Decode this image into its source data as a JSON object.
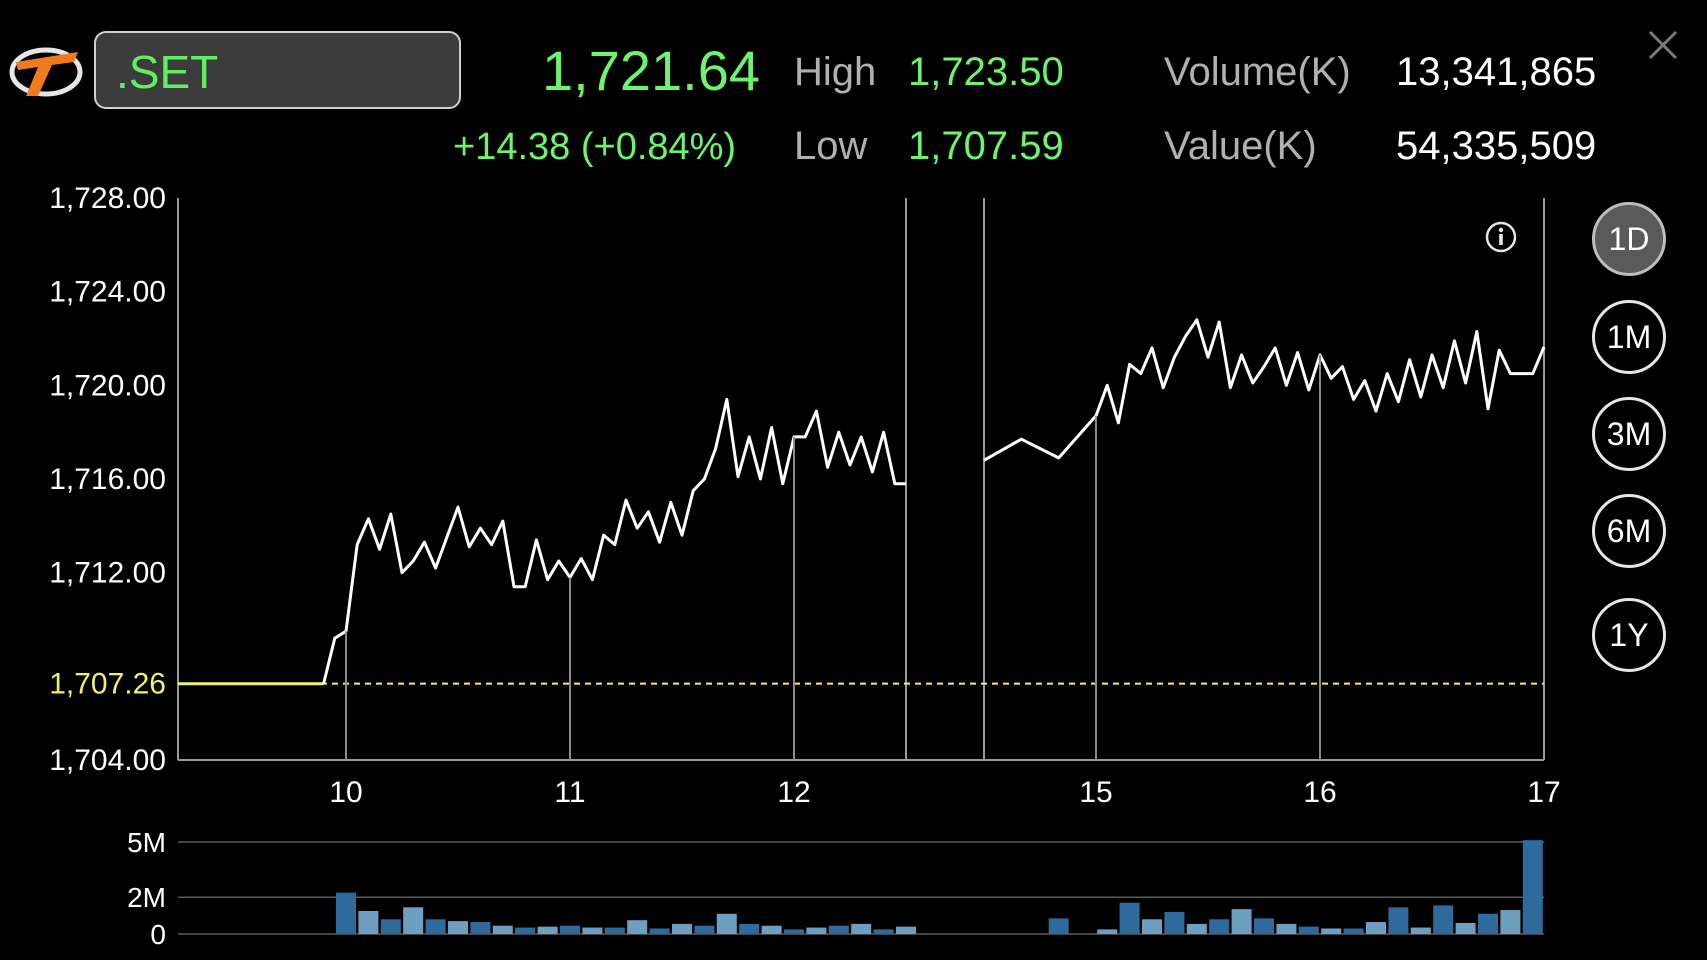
{
  "header": {
    "symbol": ".SET",
    "last": "1,721.64",
    "change": "+14.38  (+0.84%)",
    "high_label": "High",
    "high_value": "1,723.50",
    "low_label": "Low",
    "low_value": "1,707.59",
    "volume_label": "Volume(K)",
    "volume_value": "13,341,865",
    "value_label": "Value(K)",
    "value_value": "54,335,509"
  },
  "ranges": [
    {
      "label": "1D",
      "active": true
    },
    {
      "label": "1M",
      "active": false
    },
    {
      "label": "3M",
      "active": false
    },
    {
      "label": "6M",
      "active": false
    },
    {
      "label": "1Y",
      "active": false
    }
  ],
  "icons": {
    "logo": "app-logo",
    "close": "close-icon",
    "info": "info-icon"
  },
  "colors": {
    "up": "#6cf46c",
    "reference": "#f3f06a",
    "line": "#ffffff",
    "volume_dark": "#2e6b9c",
    "volume_light": "#6f9fc0"
  },
  "chart_data": [
    {
      "type": "line",
      "title": "",
      "xlabel": "",
      "ylabel": "",
      "ylim": [
        1704.0,
        1728.0
      ],
      "y_ticks": [
        "1,728.00",
        "1,724.00",
        "1,720.00",
        "1,716.00",
        "1,712.00",
        "1,704.00"
      ],
      "y_tick_values": [
        1728,
        1724,
        1720,
        1716,
        1712,
        1704
      ],
      "reference": {
        "label": "1,707.26",
        "value": 1707.26
      },
      "x_ticks": [
        "10",
        "11",
        "12",
        "15",
        "16",
        "17"
      ],
      "x_tick_values": [
        10,
        11,
        12,
        15,
        16,
        17
      ],
      "session_gap": [
        12.5,
        14.85
      ],
      "grid": true,
      "series": [
        {
          "x": [
            9.25,
            9.9
          ],
          "y": [
            1707.26,
            1707.26
          ]
        },
        {
          "x": [
            9.9,
            9.95,
            10.0,
            10.05,
            10.1,
            10.15,
            10.2,
            10.25,
            10.3,
            10.35,
            10.4,
            10.45,
            10.5,
            10.55,
            10.6,
            10.65,
            10.7,
            10.75,
            10.8,
            10.85,
            10.9,
            10.95,
            11.0,
            11.05,
            11.1,
            11.15,
            11.2,
            11.25,
            11.3,
            11.35,
            11.4,
            11.45,
            11.5,
            11.55,
            11.6,
            11.65,
            11.7,
            11.75,
            11.8,
            11.85,
            11.9,
            11.95,
            12.0,
            12.05,
            12.1,
            12.15,
            12.2,
            12.25,
            12.3,
            12.35,
            12.4,
            12.45,
            12.5
          ],
          "y": [
            1707.26,
            1709.2,
            1709.5,
            1713.2,
            1714.3,
            1713.0,
            1714.5,
            1712.0,
            1712.5,
            1713.3,
            1712.2,
            1713.5,
            1714.8,
            1713.1,
            1713.9,
            1713.2,
            1714.2,
            1711.4,
            1711.4,
            1713.4,
            1711.7,
            1712.5,
            1711.8,
            1712.6,
            1711.7,
            1713.6,
            1713.2,
            1715.1,
            1713.9,
            1714.6,
            1713.3,
            1715.0,
            1713.6,
            1715.5,
            1716.0,
            1717.3,
            1719.4,
            1716.1,
            1717.8,
            1716.0,
            1718.2,
            1715.8,
            1717.8,
            1717.8,
            1718.9,
            1716.5,
            1718.0,
            1716.6,
            1717.8,
            1716.3,
            1718.0,
            1715.8,
            1715.8
          ]
        },
        {
          "x": [
            14.85,
            14.9,
            14.95,
            15.0,
            15.05,
            15.1,
            15.15,
            15.2,
            15.25,
            15.3,
            15.35,
            15.4,
            15.45,
            15.5,
            15.55,
            15.6,
            15.65,
            15.7,
            15.75,
            15.8,
            15.85,
            15.9,
            15.95,
            16.0,
            16.05,
            16.1,
            16.15,
            16.2,
            16.25,
            16.3,
            16.35,
            16.4,
            16.45,
            16.5,
            16.55,
            16.6,
            16.65,
            16.7,
            16.75,
            16.8,
            16.85,
            16.9,
            16.95,
            17.0
          ],
          "y": [
            1716.8,
            1717.7,
            1716.9,
            1718.7,
            1720.0,
            1718.4,
            1720.9,
            1720.5,
            1721.6,
            1719.9,
            1721.2,
            1722.1,
            1722.8,
            1721.2,
            1722.7,
            1719.9,
            1721.3,
            1720.1,
            1720.8,
            1721.6,
            1720.0,
            1721.4,
            1719.8,
            1721.3,
            1720.3,
            1720.8,
            1719.4,
            1720.2,
            1718.9,
            1720.5,
            1719.3,
            1721.1,
            1719.5,
            1721.3,
            1719.9,
            1721.9,
            1720.1,
            1722.3,
            1719.0,
            1721.5,
            1720.5,
            1720.5,
            1720.5,
            1721.64
          ]
        }
      ]
    },
    {
      "type": "bar",
      "title": "",
      "ylim": [
        0,
        5
      ],
      "y_ticks": [
        "5M",
        "2M",
        "0"
      ],
      "y_tick_values": [
        5,
        2,
        0
      ],
      "unit": "M",
      "series": [
        {
          "x": [
            10.0,
            10.1,
            10.2,
            10.3,
            10.4,
            10.5,
            10.6,
            10.7,
            10.8,
            10.9,
            11.0,
            11.1,
            11.2,
            11.3,
            11.4,
            11.5,
            11.6,
            11.7,
            11.8,
            11.9,
            12.0,
            12.1,
            12.2,
            12.3,
            12.4,
            12.5,
            14.95,
            15.05,
            15.15,
            15.25,
            15.35,
            15.45,
            15.55,
            15.65,
            15.75,
            15.85,
            15.95,
            16.05,
            16.15,
            16.25,
            16.35,
            16.45,
            16.55,
            16.65,
            16.75,
            16.85,
            16.95
          ],
          "values": [
            2.25,
            1.25,
            0.8,
            1.45,
            0.8,
            0.7,
            0.65,
            0.45,
            0.35,
            0.4,
            0.45,
            0.35,
            0.35,
            0.75,
            0.3,
            0.55,
            0.45,
            1.1,
            0.55,
            0.45,
            0.25,
            0.35,
            0.45,
            0.55,
            0.25,
            0.4,
            0.85,
            0.25,
            1.7,
            0.8,
            1.2,
            0.55,
            0.8,
            1.35,
            0.85,
            0.55,
            0.4,
            0.3,
            0.3,
            0.65,
            1.45,
            0.35,
            1.55,
            0.6,
            1.1,
            1.3,
            5.1
          ]
        }
      ]
    }
  ]
}
